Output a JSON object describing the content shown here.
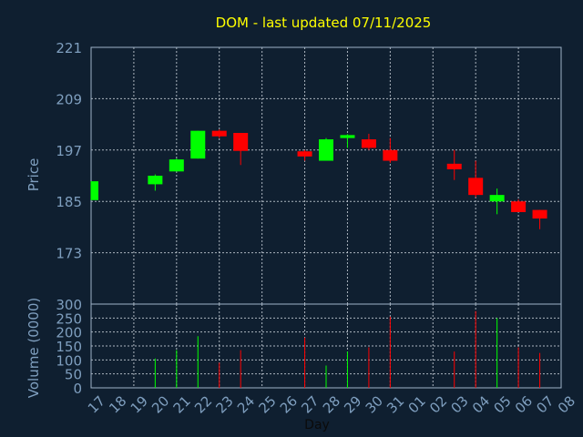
{
  "title": "DOM - last updated 07/11/2025",
  "colors": {
    "up": "#00ff00",
    "down": "#ff0000",
    "background": "#0f1f30",
    "text": "#7f9fbf",
    "title": "#ffff00"
  },
  "chart_data": [
    {
      "type": "candlestick",
      "ylabel": "Price",
      "ylim": [
        161,
        221
      ],
      "yticks": [
        221,
        209,
        197,
        185,
        173
      ],
      "grid": true,
      "x": [
        "17",
        "18",
        "19",
        "20",
        "21",
        "22",
        "23",
        "24",
        "25",
        "26",
        "27",
        "28",
        "29",
        "30",
        "31",
        "01",
        "02",
        "03",
        "04",
        "05",
        "06",
        "07",
        "08"
      ],
      "candles": [
        {
          "day": "17",
          "open": 185.3,
          "high": 189.7,
          "low": 185.3,
          "close": 189.7
        },
        {
          "day": "20",
          "open": 189.0,
          "high": 191.3,
          "low": 187.5,
          "close": 191.0
        },
        {
          "day": "21",
          "open": 192.0,
          "high": 195.0,
          "low": 192.0,
          "close": 194.8
        },
        {
          "day": "22",
          "open": 195.0,
          "high": 201.5,
          "low": 195.0,
          "close": 201.5
        },
        {
          "day": "23",
          "open": 201.5,
          "high": 201.8,
          "low": 199.8,
          "close": 200.2
        },
        {
          "day": "24",
          "open": 201.0,
          "high": 201.0,
          "low": 193.5,
          "close": 196.8
        },
        {
          "day": "27",
          "open": 196.7,
          "high": 197.0,
          "low": 194.5,
          "close": 195.5
        },
        {
          "day": "28",
          "open": 194.5,
          "high": 199.8,
          "low": 194.5,
          "close": 199.5
        },
        {
          "day": "29",
          "open": 199.8,
          "high": 200.7,
          "low": 197.5,
          "close": 200.5
        },
        {
          "day": "30",
          "open": 199.5,
          "high": 200.8,
          "low": 197.0,
          "close": 197.5
        },
        {
          "day": "31",
          "open": 197.0,
          "high": 199.8,
          "low": 194.0,
          "close": 194.5
        },
        {
          "day": "03",
          "open": 193.8,
          "high": 197.0,
          "low": 190.0,
          "close": 192.5
        },
        {
          "day": "04",
          "open": 190.5,
          "high": 194.5,
          "low": 186.0,
          "close": 186.5
        },
        {
          "day": "05",
          "open": 185.0,
          "high": 188.0,
          "low": 182.0,
          "close": 186.5
        },
        {
          "day": "06",
          "open": 185.0,
          "high": 185.5,
          "low": 182.5,
          "close": 182.5
        },
        {
          "day": "07",
          "open": 183.0,
          "high": 183.0,
          "low": 178.5,
          "close": 181.0
        }
      ]
    },
    {
      "type": "bar",
      "ylabel": "Volume (0000)",
      "xlabel": "Day",
      "ylim": [
        0,
        300
      ],
      "yticks": [
        300,
        250,
        200,
        150,
        100,
        50,
        0
      ],
      "grid": true,
      "x": [
        "17",
        "18",
        "19",
        "20",
        "21",
        "22",
        "23",
        "24",
        "25",
        "26",
        "27",
        "28",
        "29",
        "30",
        "31",
        "01",
        "02",
        "03",
        "04",
        "05",
        "06",
        "07",
        "08"
      ],
      "bars": [
        {
          "day": "20",
          "value": 105,
          "dir": "up"
        },
        {
          "day": "21",
          "value": 135,
          "dir": "up"
        },
        {
          "day": "22",
          "value": 185,
          "dir": "up"
        },
        {
          "day": "23",
          "value": 90,
          "dir": "down"
        },
        {
          "day": "24",
          "value": 135,
          "dir": "down"
        },
        {
          "day": "27",
          "value": 180,
          "dir": "down"
        },
        {
          "day": "28",
          "value": 80,
          "dir": "up"
        },
        {
          "day": "29",
          "value": 130,
          "dir": "up"
        },
        {
          "day": "30",
          "value": 145,
          "dir": "down"
        },
        {
          "day": "31",
          "value": 255,
          "dir": "down"
        },
        {
          "day": "03",
          "value": 130,
          "dir": "down"
        },
        {
          "day": "04",
          "value": 275,
          "dir": "down"
        },
        {
          "day": "05",
          "value": 250,
          "dir": "up"
        },
        {
          "day": "06",
          "value": 145,
          "dir": "down"
        },
        {
          "day": "07",
          "value": 125,
          "dir": "down"
        }
      ]
    }
  ]
}
